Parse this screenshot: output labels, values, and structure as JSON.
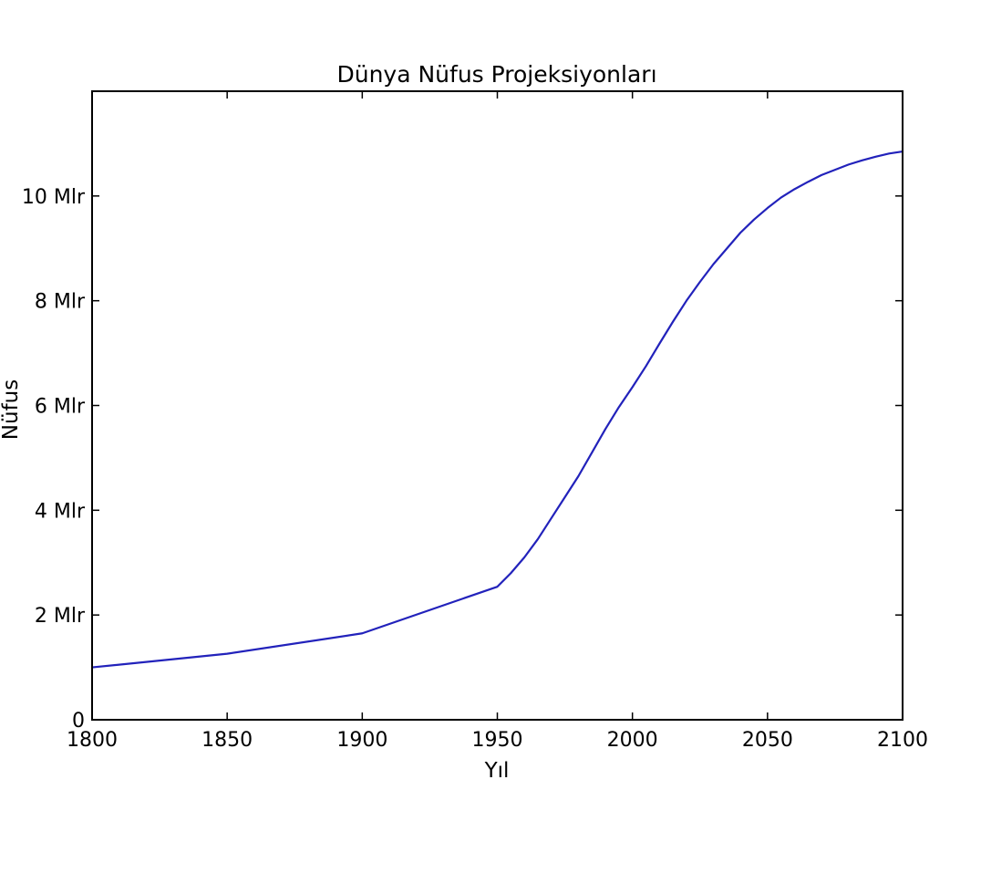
{
  "chart_data": {
    "type": "line",
    "title": "Dünya Nüfus Projeksiyonları",
    "xlabel": "Yıl",
    "ylabel": "Nüfus",
    "xlim": [
      1800,
      2100
    ],
    "ylim": [
      0,
      12
    ],
    "grid": false,
    "x_ticks": [
      1800,
      1850,
      1900,
      1950,
      2000,
      2050,
      2100
    ],
    "x_tick_labels": [
      "1800",
      "1850",
      "1900",
      "1950",
      "2000",
      "2050",
      "2100"
    ],
    "y_ticks": [
      0,
      2,
      4,
      6,
      8,
      10
    ],
    "y_tick_labels": [
      "0",
      "2 Mlr",
      "4 Mlr",
      "6 Mlr",
      "8 Mlr",
      "10 Mlr"
    ],
    "series": [
      {
        "color": "#2222bb",
        "x": [
          1800,
          1850,
          1900,
          1950,
          1955,
          1960,
          1965,
          1970,
          1975,
          1980,
          1985,
          1990,
          1995,
          2000,
          2005,
          2010,
          2015,
          2020,
          2025,
          2030,
          2035,
          2040,
          2045,
          2050,
          2055,
          2060,
          2065,
          2070,
          2075,
          2080,
          2085,
          2090,
          2095,
          2100
        ],
        "y": [
          1.0,
          1.26,
          1.65,
          2.54,
          2.8,
          3.1,
          3.45,
          3.85,
          4.25,
          4.65,
          5.1,
          5.55,
          5.97,
          6.35,
          6.75,
          7.18,
          7.6,
          8.0,
          8.36,
          8.7,
          9.0,
          9.3,
          9.55,
          9.77,
          9.97,
          10.13,
          10.27,
          10.4,
          10.5,
          10.6,
          10.68,
          10.75,
          10.81,
          10.85
        ]
      }
    ]
  }
}
